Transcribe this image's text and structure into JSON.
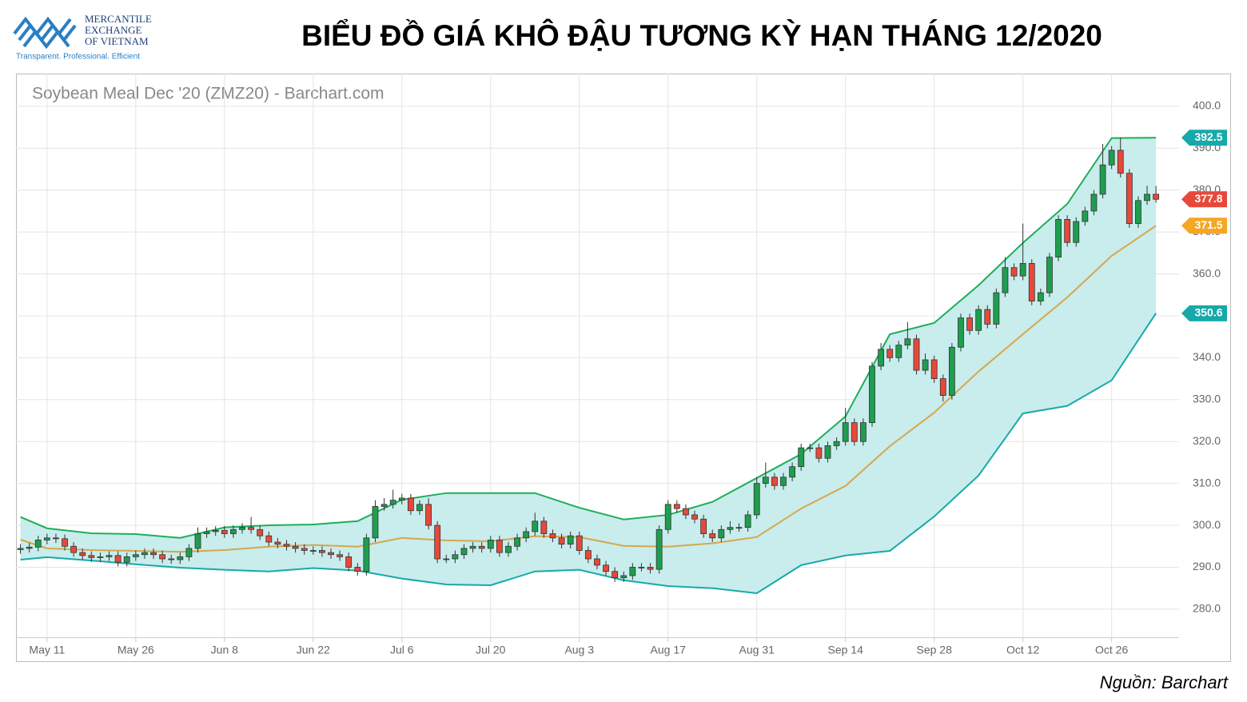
{
  "logo": {
    "lines": [
      "MERCANTILE",
      "EXCHANGE",
      "OF VIETNAM"
    ],
    "tagline": "Transparent. Professional. Efficient"
  },
  "chart_data": {
    "type": "candlestick",
    "title": "BIỂU ĐỒ GIÁ KHÔ ĐẬU TƯƠNG KỲ HẠN THÁNG 12/2020",
    "subtitle": "Soybean Meal Dec '20 (ZMZ20) - Barchart.com",
    "source": "Nguồn: Barchart",
    "x": [
      -3,
      -2,
      -1,
      0,
      1,
      2,
      3,
      4,
      5,
      6,
      7,
      8,
      9,
      10,
      11,
      12,
      13,
      14,
      15,
      16,
      17,
      18,
      19,
      20,
      21,
      22,
      23,
      24,
      25,
      26,
      27,
      28,
      29,
      30,
      31,
      32,
      33,
      34,
      35,
      36,
      37,
      38,
      39,
      40,
      41,
      42,
      43,
      44,
      45,
      46,
      47,
      48,
      49,
      50,
      51,
      52,
      53,
      54,
      55,
      56,
      57,
      58,
      59,
      60,
      61,
      62,
      63,
      64,
      65,
      66,
      67,
      68,
      69,
      70,
      71,
      72,
      73,
      74,
      75,
      76,
      77,
      78,
      79,
      80,
      81,
      82,
      83,
      84,
      85,
      86,
      87,
      88,
      89,
      90,
      91,
      92,
      93,
      94,
      95,
      96,
      97,
      98,
      99,
      100,
      101,
      102,
      103,
      104,
      105,
      106,
      107,
      108,
      109,
      110,
      111,
      112,
      113,
      114,
      115,
      116,
      117,
      118,
      119,
      120,
      121,
      122,
      123,
      124,
      125
    ],
    "open": [
      294.2,
      294.5,
      294.8,
      296.5,
      297,
      296.8,
      295,
      293.5,
      292.8,
      292.3,
      292.5,
      292.8,
      291.2,
      292.5,
      293,
      293.5,
      293,
      292,
      291.8,
      292.5,
      294.5,
      298,
      298.5,
      298.8,
      298,
      299,
      299.5,
      299,
      297.5,
      296,
      295.5,
      295,
      294.5,
      294,
      294,
      293.5,
      293,
      292.5,
      290,
      289,
      297,
      304.5,
      305,
      306,
      306.5,
      303.5,
      305,
      300,
      292,
      292,
      293,
      294.5,
      295,
      294.5,
      296.5,
      293.5,
      295,
      297,
      298.5,
      301,
      298,
      297,
      295.5,
      297.5,
      294,
      292,
      290.5,
      289,
      287.5,
      288,
      290,
      290,
      289.5,
      299,
      305,
      304,
      302.5,
      301.5,
      298,
      297,
      299,
      299.5,
      299.5,
      302.5,
      310,
      311.5,
      309.5,
      311.5,
      314,
      318.5,
      318.5,
      316,
      319,
      320,
      324.5,
      320,
      324.5,
      338,
      342,
      340,
      343,
      344.5,
      337,
      339.5,
      335,
      331,
      342.5,
      349.5,
      346.5,
      351.5,
      348,
      355.5,
      361.5,
      359.5,
      362.5,
      353.5,
      355.5,
      364,
      373,
      367.5,
      372.5,
      375,
      379,
      386,
      389.5,
      384,
      372,
      377.5,
      379
    ],
    "high": [
      295.5,
      295.8,
      297.5,
      298,
      298,
      297.8,
      296,
      294.5,
      293.8,
      293.5,
      293.8,
      293.8,
      293.5,
      294,
      294.5,
      294.5,
      294,
      293,
      293.5,
      295.5,
      299.5,
      299.5,
      299.8,
      299.8,
      300,
      300.5,
      302,
      300,
      298.5,
      297,
      296.5,
      296,
      295.5,
      295,
      295,
      294.5,
      294,
      293.5,
      291,
      298,
      306,
      306.5,
      308.5,
      307.5,
      307.5,
      306,
      306.5,
      301,
      293,
      294,
      295.5,
      296,
      296,
      297.5,
      297.5,
      296,
      298,
      299.5,
      303,
      302,
      299,
      298,
      298.5,
      298.5,
      295,
      293,
      291.5,
      290,
      289,
      291,
      291,
      291,
      300,
      306,
      306,
      305,
      303.5,
      302.5,
      299,
      300,
      301,
      300.5,
      303.5,
      311.5,
      315,
      312.5,
      312.5,
      315,
      319.5,
      319.5,
      319.5,
      320,
      321,
      328,
      325.5,
      325.5,
      339,
      343.5,
      343,
      344,
      348.5,
      345.5,
      341,
      340.5,
      336,
      343.5,
      350.5,
      350.5,
      352.5,
      352.5,
      356.5,
      364,
      362.5,
      372,
      363.5,
      356.5,
      365,
      374,
      374,
      373.5,
      376,
      380,
      391,
      390.5,
      392.5,
      385,
      378.5,
      381,
      381
    ],
    "low": [
      293.2,
      293.5,
      293.8,
      295.5,
      295.8,
      294,
      292.5,
      291.8,
      291.3,
      291.3,
      291.5,
      290.2,
      290.2,
      291.5,
      292,
      292,
      291,
      290.8,
      290.8,
      291.5,
      293.5,
      297,
      297.5,
      297,
      297,
      298,
      298,
      296.5,
      295,
      294.5,
      294,
      293.5,
      293,
      293,
      292.5,
      292,
      291.5,
      289,
      288,
      288,
      296,
      303.5,
      304,
      305,
      302.5,
      302.5,
      299,
      291,
      291,
      291,
      292,
      293.5,
      293.5,
      293.5,
      292.5,
      292.5,
      294,
      296,
      297.5,
      297,
      296,
      294.5,
      294.5,
      293,
      291,
      289.5,
      288,
      286.5,
      286.5,
      287,
      289,
      288.5,
      288.5,
      298,
      303,
      301.5,
      300.5,
      297,
      296,
      296,
      298,
      298.5,
      298.5,
      301.5,
      309,
      308.5,
      308.5,
      310.5,
      313,
      317.5,
      315,
      315,
      318,
      319,
      319,
      319,
      323.5,
      337,
      339,
      339,
      342,
      336,
      336,
      334,
      329.5,
      330,
      341.5,
      345.5,
      345.5,
      347,
      347,
      354.5,
      358.5,
      358.5,
      352.5,
      352.5,
      354.5,
      363,
      366.5,
      366.5,
      371.5,
      374,
      378,
      385,
      383,
      371,
      371,
      376.5,
      377
    ],
    "close": [
      294.5,
      294.8,
      296.5,
      297,
      296.8,
      295,
      293.5,
      292.8,
      292.3,
      292.5,
      292.8,
      291.2,
      292.5,
      293,
      293.5,
      293,
      292,
      291.8,
      292.5,
      294.5,
      298,
      298.5,
      298.8,
      298,
      299,
      299.5,
      299,
      297.5,
      296,
      295.5,
      295,
      294.5,
      294,
      294,
      293.5,
      293,
      292.5,
      290,
      289,
      297,
      304.5,
      305,
      306,
      306.5,
      303.5,
      305,
      300,
      292,
      292,
      293,
      294.5,
      295,
      294.5,
      296.5,
      293.5,
      295,
      297,
      298.5,
      301,
      298,
      297,
      295.5,
      297.5,
      294,
      292,
      290.5,
      289,
      287.5,
      288,
      290,
      290,
      289.5,
      299,
      305,
      304,
      302.5,
      301.5,
      298,
      297,
      299,
      299.5,
      299.5,
      302.5,
      310,
      311.5,
      309.5,
      311.5,
      314,
      318.5,
      318.5,
      316,
      319,
      320,
      324.5,
      320,
      324.5,
      338,
      342,
      340,
      343,
      344.5,
      337,
      339.5,
      335,
      331,
      342.5,
      349.5,
      346.5,
      351.5,
      348,
      355.5,
      361.5,
      359.5,
      362.5,
      353.5,
      355.5,
      364,
      373,
      367.5,
      372.5,
      375,
      379,
      386,
      389.5,
      384,
      372,
      377.5,
      379,
      377.8
    ],
    "up_color": "#1e9e4f",
    "down_color": "#e8483a",
    "bands": {
      "x": [
        -3,
        0,
        5,
        10,
        15,
        20,
        25,
        30,
        35,
        40,
        45,
        50,
        55,
        60,
        65,
        70,
        75,
        80,
        85,
        90,
        95,
        100,
        105,
        110,
        115,
        120,
        125
      ],
      "upper": [
        302,
        299.3,
        298.1,
        297.9,
        297,
        299.5,
        300,
        300.2,
        301,
        306.1,
        307.7,
        307.7,
        307.7,
        304.2,
        301.4,
        302.5,
        305.6,
        311.3,
        317,
        326,
        345.6,
        348.3,
        357.3,
        367.4,
        376.7,
        392.4,
        392.5
      ],
      "middle": [
        296.6,
        294.5,
        294.1,
        293.9,
        293.7,
        294.1,
        294.9,
        295.3,
        294.9,
        297,
        296.4,
        296.2,
        297.4,
        297.2,
        295.1,
        294.9,
        295.7,
        297.2,
        304,
        309.4,
        318.9,
        326.9,
        336.7,
        345.6,
        354.4,
        364.3,
        371.5
      ],
      "lower": [
        291.8,
        292.4,
        291.6,
        290.7,
        289.9,
        289.4,
        289,
        289.8,
        289.2,
        287.3,
        285.9,
        285.7,
        289,
        289.4,
        286.9,
        285.5,
        285,
        283.8,
        290.5,
        292.8,
        293.9,
        302.1,
        311.9,
        326.7,
        328.5,
        334.6,
        350.6
      ],
      "upper_color": "#1fae5a",
      "middle_color": "#d4a84b",
      "lower_color": "#17a9aa",
      "fill": "#c9ecec"
    },
    "xlim": [
      -3.5,
      127.6
    ],
    "ylim": [
      273.3,
      407.8
    ],
    "xticks": [
      {
        "value": 0,
        "label": "May 11"
      },
      {
        "value": 10,
        "label": "May 26"
      },
      {
        "value": 20,
        "label": "Jun 8"
      },
      {
        "value": 30,
        "label": "Jun 22"
      },
      {
        "value": 40,
        "label": "Jul 6"
      },
      {
        "value": 50,
        "label": "Jul 20"
      },
      {
        "value": 60,
        "label": "Aug 3"
      },
      {
        "value": 70,
        "label": "Aug 17"
      },
      {
        "value": 80,
        "label": "Aug 31"
      },
      {
        "value": 90,
        "label": "Sep 14"
      },
      {
        "value": 100,
        "label": "Sep 28"
      },
      {
        "value": 110,
        "label": "Oct 12"
      },
      {
        "value": 120,
        "label": "Oct 26"
      }
    ],
    "yticks": [
      {
        "value": 280,
        "label": "280.0"
      },
      {
        "value": 290,
        "label": "290.0"
      },
      {
        "value": 300,
        "label": "300.0"
      },
      {
        "value": 310,
        "label": "310.0"
      },
      {
        "value": 320,
        "label": "320.0"
      },
      {
        "value": 330,
        "label": "330.0"
      },
      {
        "value": 340,
        "label": "340.0"
      },
      {
        "value": 350,
        "label": "350.0"
      },
      {
        "value": 360,
        "label": "360.0"
      },
      {
        "value": 370,
        "label": "370.0"
      },
      {
        "value": 380,
        "label": "380.0"
      },
      {
        "value": 390,
        "label": "390.0"
      },
      {
        "value": 400,
        "label": "400.0"
      }
    ],
    "grid": true
  }
}
